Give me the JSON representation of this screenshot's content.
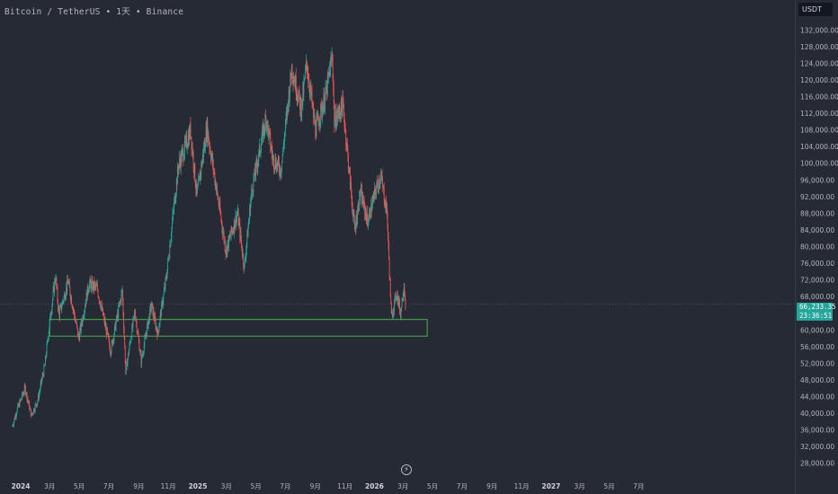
{
  "header": {
    "title": "Bitcoin / TetherUS • 1天 • Binance"
  },
  "currency_badge": "USDT",
  "last_price": {
    "value": "66,233.35",
    "countdown": "23:36:51"
  },
  "markers": {
    "bolt": "⚡"
  },
  "colors": {
    "up": "#26a69a",
    "down": "#ef5350",
    "zone": "#4caf50",
    "background": "#262a35",
    "axis_text": "#b2b5be"
  },
  "chart_data": {
    "type": "candlestick",
    "title": "",
    "y_axis": {
      "side": "right",
      "range": [
        26000,
        134000
      ],
      "ticks": [
        "132,000.00",
        "128,000.00",
        "124,000.00",
        "120,000.00",
        "116,000.00",
        "112,000.00",
        "108,000.00",
        "104,000.00",
        "100,000.00",
        "96,000.00",
        "92,000.00",
        "88,000.00",
        "84,000.00",
        "80,000.00",
        "76,000.00",
        "72,000.00",
        "68,000.00",
        "60,000.00",
        "56,000.00",
        "52,000.00",
        "48,000.00",
        "44,000.00",
        "40,000.00",
        "36,000.00",
        "32,000.00",
        "28,000.00"
      ]
    },
    "x_axis": {
      "ticks": [
        {
          "label": "2024",
          "date": "2024-01-01",
          "bold": true
        },
        {
          "label": "3月",
          "date": "2024-03-01"
        },
        {
          "label": "5月",
          "date": "2024-05-01"
        },
        {
          "label": "7月",
          "date": "2024-07-01"
        },
        {
          "label": "9月",
          "date": "2024-09-01"
        },
        {
          "label": "11月",
          "date": "2024-11-01"
        },
        {
          "label": "2025",
          "date": "2025-01-01",
          "bold": true
        },
        {
          "label": "3月",
          "date": "2025-03-01"
        },
        {
          "label": "5月",
          "date": "2025-05-01"
        },
        {
          "label": "7月",
          "date": "2025-07-01"
        },
        {
          "label": "9月",
          "date": "2025-09-01"
        },
        {
          "label": "11月",
          "date": "2025-11-01"
        },
        {
          "label": "2026",
          "date": "2026-01-01",
          "bold": true
        },
        {
          "label": "3月",
          "date": "2026-03-01"
        },
        {
          "label": "5月",
          "date": "2026-05-01"
        },
        {
          "label": "7月",
          "date": "2026-07-01"
        },
        {
          "label": "9月",
          "date": "2026-09-01"
        },
        {
          "label": "11月",
          "date": "2026-11-01"
        },
        {
          "label": "2027",
          "date": "2027-01-01",
          "bold": true
        },
        {
          "label": "3月",
          "date": "2027-03-01"
        },
        {
          "label": "5月",
          "date": "2027-05-01"
        },
        {
          "label": "7月",
          "date": "2027-07-01"
        }
      ]
    },
    "last_price_line": 66233.35,
    "support_zone": {
      "start": "2024-03-01",
      "end": "2026-04-20",
      "low": 58500,
      "high": 62500
    },
    "price_path": [
      {
        "date": "2023-12-15",
        "price": 37000
      },
      {
        "date": "2023-12-25",
        "price": 41000
      },
      {
        "date": "2024-01-10",
        "price": 46000
      },
      {
        "date": "2024-01-23",
        "price": 39500
      },
      {
        "date": "2024-02-05",
        "price": 43000
      },
      {
        "date": "2024-02-20",
        "price": 51500
      },
      {
        "date": "2024-03-01",
        "price": 62000
      },
      {
        "date": "2024-03-13",
        "price": 73000
      },
      {
        "date": "2024-03-20",
        "price": 63500
      },
      {
        "date": "2024-04-08",
        "price": 71500
      },
      {
        "date": "2024-04-30",
        "price": 58000
      },
      {
        "date": "2024-05-21",
        "price": 71000
      },
      {
        "date": "2024-06-07",
        "price": 70000
      },
      {
        "date": "2024-07-05",
        "price": 55000
      },
      {
        "date": "2024-07-29",
        "price": 69500
      },
      {
        "date": "2024-08-05",
        "price": 50000
      },
      {
        "date": "2024-08-24",
        "price": 64500
      },
      {
        "date": "2024-09-06",
        "price": 52500
      },
      {
        "date": "2024-09-27",
        "price": 66000
      },
      {
        "date": "2024-10-10",
        "price": 59000
      },
      {
        "date": "2024-10-29",
        "price": 73500
      },
      {
        "date": "2024-11-13",
        "price": 90000
      },
      {
        "date": "2024-11-22",
        "price": 99500
      },
      {
        "date": "2024-12-05",
        "price": 103500
      },
      {
        "date": "2024-12-17",
        "price": 108000
      },
      {
        "date": "2024-12-30",
        "price": 92000
      },
      {
        "date": "2025-01-20",
        "price": 108500
      },
      {
        "date": "2025-02-03",
        "price": 98000
      },
      {
        "date": "2025-02-28",
        "price": 79000
      },
      {
        "date": "2025-03-24",
        "price": 88000
      },
      {
        "date": "2025-04-07",
        "price": 75000
      },
      {
        "date": "2025-04-22",
        "price": 93000
      },
      {
        "date": "2025-05-22",
        "price": 111000
      },
      {
        "date": "2025-06-05",
        "price": 101000
      },
      {
        "date": "2025-06-22",
        "price": 98500
      },
      {
        "date": "2025-07-14",
        "price": 123000
      },
      {
        "date": "2025-08-03",
        "price": 113000
      },
      {
        "date": "2025-08-14",
        "price": 124000
      },
      {
        "date": "2025-09-01",
        "price": 108000
      },
      {
        "date": "2025-09-22",
        "price": 116000
      },
      {
        "date": "2025-10-06",
        "price": 126000
      },
      {
        "date": "2025-10-10",
        "price": 110000
      },
      {
        "date": "2025-10-28",
        "price": 114000
      },
      {
        "date": "2025-11-21",
        "price": 84000
      },
      {
        "date": "2025-12-03",
        "price": 93000
      },
      {
        "date": "2025-12-18",
        "price": 86000
      },
      {
        "date": "2026-01-05",
        "price": 94000
      },
      {
        "date": "2026-01-14",
        "price": 97000
      },
      {
        "date": "2026-01-27",
        "price": 88000
      },
      {
        "date": "2026-02-05",
        "price": 63000
      },
      {
        "date": "2026-02-16",
        "price": 69000
      },
      {
        "date": "2026-02-24",
        "price": 64000
      },
      {
        "date": "2026-03-03",
        "price": 71000
      },
      {
        "date": "2026-03-06",
        "price": 66233
      }
    ]
  }
}
